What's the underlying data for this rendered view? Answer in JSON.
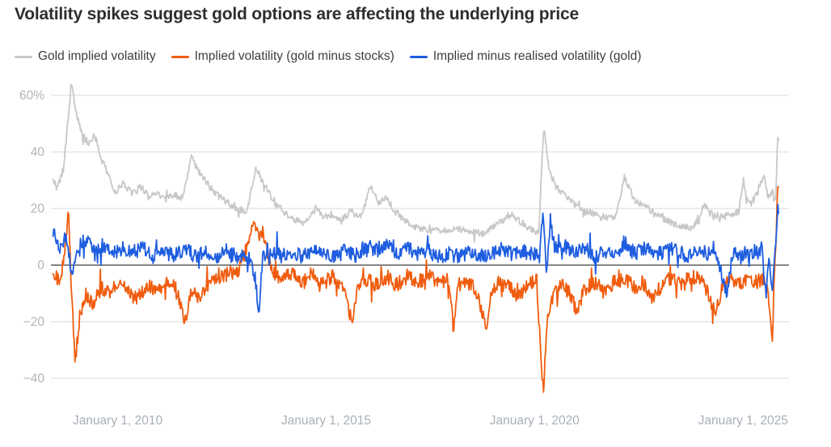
{
  "title": "Volatility spikes suggest gold options are affecting the underlying price",
  "colors": {
    "background": "#ffffff",
    "title_text": "#2e2e2e",
    "legend_text": "#3d3d3d",
    "grid_line": "#dadada",
    "zero_line": "#3d3d3d",
    "y_tick_text": "#b3b3b3",
    "x_tick_text": "#a9b0b7"
  },
  "chart_data": {
    "type": "line",
    "title": "Volatility spikes suggest gold options are affecting the underlying price",
    "xlabel": "",
    "ylabel": "",
    "unit": "%",
    "grid": "horizontal",
    "legend_position": "top",
    "zero_line": true,
    "x_axis": {
      "range": [
        2008.4,
        2026.1
      ],
      "data_start": 2008.45,
      "data_end": 2025.85,
      "ticks": [
        2010,
        2015,
        2020,
        2025
      ],
      "tick_labels": [
        "January 1, 2010",
        "January 1, 2015",
        "January 1, 2020",
        "January 1, 2025"
      ]
    },
    "y_axis": {
      "range": [
        -47,
        65
      ],
      "ticks": [
        60,
        40,
        20,
        0,
        -20,
        -40
      ],
      "tick_labels": [
        "60%",
        "40",
        "20",
        "0",
        "−20",
        "−40"
      ]
    },
    "points_per_series": 1060,
    "noise_seed": 20251101,
    "series": [
      {
        "name": "Gold implied volatility",
        "color": "#c8c8c8",
        "noise": 1.2,
        "anchors": [
          [
            2008.45,
            31
          ],
          [
            2008.55,
            27
          ],
          [
            2008.7,
            34
          ],
          [
            2008.9,
            65
          ],
          [
            2009.0,
            54
          ],
          [
            2009.15,
            46
          ],
          [
            2009.3,
            43
          ],
          [
            2009.45,
            46
          ],
          [
            2009.6,
            38
          ],
          [
            2009.8,
            31
          ],
          [
            2009.95,
            26
          ],
          [
            2010.15,
            29
          ],
          [
            2010.35,
            25
          ],
          [
            2010.55,
            28
          ],
          [
            2010.75,
            24
          ],
          [
            2010.95,
            26
          ],
          [
            2011.15,
            23
          ],
          [
            2011.35,
            25
          ],
          [
            2011.55,
            24
          ],
          [
            2011.77,
            38
          ],
          [
            2011.9,
            34
          ],
          [
            2012.05,
            31
          ],
          [
            2012.25,
            27
          ],
          [
            2012.45,
            24
          ],
          [
            2012.65,
            22
          ],
          [
            2012.85,
            20
          ],
          [
            2013.1,
            19
          ],
          [
            2013.32,
            35
          ],
          [
            2013.45,
            30
          ],
          [
            2013.65,
            25
          ],
          [
            2013.85,
            21
          ],
          [
            2014.05,
            18
          ],
          [
            2014.25,
            16
          ],
          [
            2014.5,
            15
          ],
          [
            2014.75,
            20
          ],
          [
            2014.95,
            17
          ],
          [
            2015.15,
            18
          ],
          [
            2015.35,
            16
          ],
          [
            2015.6,
            19
          ],
          [
            2015.85,
            17
          ],
          [
            2016.06,
            28
          ],
          [
            2016.25,
            22
          ],
          [
            2016.45,
            24
          ],
          [
            2016.65,
            19
          ],
          [
            2016.9,
            16
          ],
          [
            2017.2,
            13
          ],
          [
            2017.5,
            12
          ],
          [
            2017.8,
            12
          ],
          [
            2018.1,
            13
          ],
          [
            2018.4,
            12
          ],
          [
            2018.75,
            11
          ],
          [
            2019.05,
            14
          ],
          [
            2019.45,
            18
          ],
          [
            2019.7,
            15
          ],
          [
            2019.95,
            12
          ],
          [
            2020.1,
            12
          ],
          [
            2020.22,
            49
          ],
          [
            2020.35,
            34
          ],
          [
            2020.5,
            28
          ],
          [
            2020.7,
            25
          ],
          [
            2020.9,
            22
          ],
          [
            2021.15,
            20
          ],
          [
            2021.4,
            18
          ],
          [
            2021.7,
            17
          ],
          [
            2021.95,
            17
          ],
          [
            2022.15,
            31
          ],
          [
            2022.4,
            23
          ],
          [
            2022.65,
            21
          ],
          [
            2022.9,
            18
          ],
          [
            2023.15,
            16
          ],
          [
            2023.45,
            14
          ],
          [
            2023.75,
            13
          ],
          [
            2023.95,
            16
          ],
          [
            2024.05,
            22
          ],
          [
            2024.25,
            18
          ],
          [
            2024.5,
            17
          ],
          [
            2024.75,
            18
          ],
          [
            2024.9,
            19
          ],
          [
            2025.0,
            29
          ],
          [
            2025.15,
            21
          ],
          [
            2025.3,
            24
          ],
          [
            2025.5,
            32
          ],
          [
            2025.6,
            24
          ],
          [
            2025.72,
            26
          ],
          [
            2025.78,
            22
          ],
          [
            2025.83,
            46
          ],
          [
            2025.85,
            44
          ]
        ]
      },
      {
        "name": "Implied volatility (gold minus stocks)",
        "color": "#f05c0e",
        "noise": 2.6,
        "anchors": [
          [
            2008.45,
            -2
          ],
          [
            2008.6,
            -6
          ],
          [
            2008.72,
            2
          ],
          [
            2008.82,
            21
          ],
          [
            2008.9,
            -12
          ],
          [
            2008.98,
            -34
          ],
          [
            2009.1,
            -17
          ],
          [
            2009.25,
            -10
          ],
          [
            2009.4,
            -14
          ],
          [
            2009.6,
            -8
          ],
          [
            2009.8,
            -10
          ],
          [
            2010.0,
            -6
          ],
          [
            2010.2,
            -9
          ],
          [
            2010.45,
            -12
          ],
          [
            2010.7,
            -7
          ],
          [
            2010.95,
            -9
          ],
          [
            2011.15,
            -6
          ],
          [
            2011.4,
            -8
          ],
          [
            2011.62,
            -20
          ],
          [
            2011.75,
            -9
          ],
          [
            2011.95,
            -12
          ],
          [
            2012.15,
            -7
          ],
          [
            2012.4,
            -5
          ],
          [
            2012.65,
            -3
          ],
          [
            2012.9,
            -2
          ],
          [
            2013.1,
            6
          ],
          [
            2013.28,
            17
          ],
          [
            2013.38,
            9
          ],
          [
            2013.48,
            13
          ],
          [
            2013.6,
            3
          ],
          [
            2013.75,
            -3
          ],
          [
            2013.95,
            -5
          ],
          [
            2014.15,
            -3
          ],
          [
            2014.4,
            -6
          ],
          [
            2014.65,
            -3
          ],
          [
            2014.9,
            -7
          ],
          [
            2015.15,
            -4
          ],
          [
            2015.4,
            -7
          ],
          [
            2015.63,
            -21
          ],
          [
            2015.75,
            -7
          ],
          [
            2015.95,
            -5
          ],
          [
            2016.2,
            -7
          ],
          [
            2016.45,
            -4
          ],
          [
            2016.7,
            -7
          ],
          [
            2016.95,
            -4
          ],
          [
            2017.2,
            -6
          ],
          [
            2017.45,
            -4
          ],
          [
            2017.7,
            -6
          ],
          [
            2017.95,
            -5
          ],
          [
            2018.05,
            -23
          ],
          [
            2018.15,
            -7
          ],
          [
            2018.4,
            -6
          ],
          [
            2018.6,
            -9
          ],
          [
            2018.85,
            -22
          ],
          [
            2018.95,
            -9
          ],
          [
            2019.15,
            -6
          ],
          [
            2019.4,
            -8
          ],
          [
            2019.6,
            -11
          ],
          [
            2019.85,
            -7
          ],
          [
            2020.05,
            -5
          ],
          [
            2020.2,
            -46
          ],
          [
            2020.32,
            -18
          ],
          [
            2020.45,
            -10
          ],
          [
            2020.65,
            -7
          ],
          [
            2020.85,
            -10
          ],
          [
            2021.0,
            -16
          ],
          [
            2021.15,
            -9
          ],
          [
            2021.4,
            -6
          ],
          [
            2021.65,
            -9
          ],
          [
            2021.9,
            -6
          ],
          [
            2022.15,
            -5
          ],
          [
            2022.4,
            -8
          ],
          [
            2022.6,
            -6
          ],
          [
            2022.85,
            -12
          ],
          [
            2023.05,
            -7
          ],
          [
            2023.3,
            -5
          ],
          [
            2023.55,
            -7
          ],
          [
            2023.8,
            -4
          ],
          [
            2024.05,
            -6
          ],
          [
            2024.35,
            -17
          ],
          [
            2024.5,
            -7
          ],
          [
            2024.7,
            -5
          ],
          [
            2024.95,
            -7
          ],
          [
            2025.15,
            -4
          ],
          [
            2025.3,
            -6
          ],
          [
            2025.45,
            -5
          ],
          [
            2025.6,
            -8
          ],
          [
            2025.7,
            -30
          ],
          [
            2025.74,
            -6
          ],
          [
            2025.78,
            2
          ],
          [
            2025.83,
            29
          ],
          [
            2025.85,
            25
          ]
        ]
      },
      {
        "name": "Implied minus realised volatility (gold)",
        "color": "#1e5de0",
        "noise": 2.6,
        "anchors": [
          [
            2008.45,
            12
          ],
          [
            2008.6,
            6
          ],
          [
            2008.75,
            10
          ],
          [
            2008.9,
            -3
          ],
          [
            2009.05,
            7
          ],
          [
            2009.25,
            9
          ],
          [
            2009.45,
            5
          ],
          [
            2009.65,
            7
          ],
          [
            2009.85,
            4
          ],
          [
            2010.1,
            6
          ],
          [
            2010.35,
            4
          ],
          [
            2010.6,
            7
          ],
          [
            2010.85,
            3
          ],
          [
            2011.1,
            5
          ],
          [
            2011.35,
            3
          ],
          [
            2011.6,
            6
          ],
          [
            2011.85,
            3
          ],
          [
            2012.1,
            5
          ],
          [
            2012.35,
            3
          ],
          [
            2012.6,
            5
          ],
          [
            2012.85,
            3
          ],
          [
            2013.1,
            4
          ],
          [
            2013.3,
            -4
          ],
          [
            2013.38,
            -19
          ],
          [
            2013.48,
            3
          ],
          [
            2013.7,
            5
          ],
          [
            2013.95,
            3
          ],
          [
            2014.2,
            5
          ],
          [
            2014.45,
            3
          ],
          [
            2014.7,
            6
          ],
          [
            2014.95,
            4
          ],
          [
            2015.2,
            3
          ],
          [
            2015.45,
            5
          ],
          [
            2015.7,
            3
          ],
          [
            2015.95,
            7
          ],
          [
            2016.2,
            5
          ],
          [
            2016.45,
            8
          ],
          [
            2016.7,
            4
          ],
          [
            2016.95,
            6
          ],
          [
            2017.2,
            4
          ],
          [
            2017.45,
            5
          ],
          [
            2017.7,
            3
          ],
          [
            2017.95,
            4
          ],
          [
            2018.2,
            3
          ],
          [
            2018.45,
            5
          ],
          [
            2018.7,
            3
          ],
          [
            2018.95,
            4
          ],
          [
            2019.2,
            6
          ],
          [
            2019.45,
            4
          ],
          [
            2019.7,
            5
          ],
          [
            2019.95,
            4
          ],
          [
            2020.12,
            3
          ],
          [
            2020.2,
            20
          ],
          [
            2020.28,
            -4
          ],
          [
            2020.38,
            16
          ],
          [
            2020.5,
            4
          ],
          [
            2020.7,
            7
          ],
          [
            2020.95,
            4
          ],
          [
            2021.2,
            6
          ],
          [
            2021.45,
            3
          ],
          [
            2021.7,
            5
          ],
          [
            2021.95,
            4
          ],
          [
            2022.15,
            8
          ],
          [
            2022.4,
            4
          ],
          [
            2022.65,
            6
          ],
          [
            2022.9,
            4
          ],
          [
            2023.15,
            5
          ],
          [
            2023.4,
            6
          ],
          [
            2023.65,
            3
          ],
          [
            2023.9,
            5
          ],
          [
            2024.15,
            4
          ],
          [
            2024.35,
            5
          ],
          [
            2024.6,
            -10
          ],
          [
            2024.75,
            4
          ],
          [
            2024.95,
            3
          ],
          [
            2025.15,
            6
          ],
          [
            2025.35,
            4
          ],
          [
            2025.45,
            6
          ],
          [
            2025.55,
            -12
          ],
          [
            2025.62,
            3
          ],
          [
            2025.7,
            -8
          ],
          [
            2025.78,
            6
          ],
          [
            2025.83,
            21
          ],
          [
            2025.85,
            17
          ]
        ]
      }
    ]
  }
}
